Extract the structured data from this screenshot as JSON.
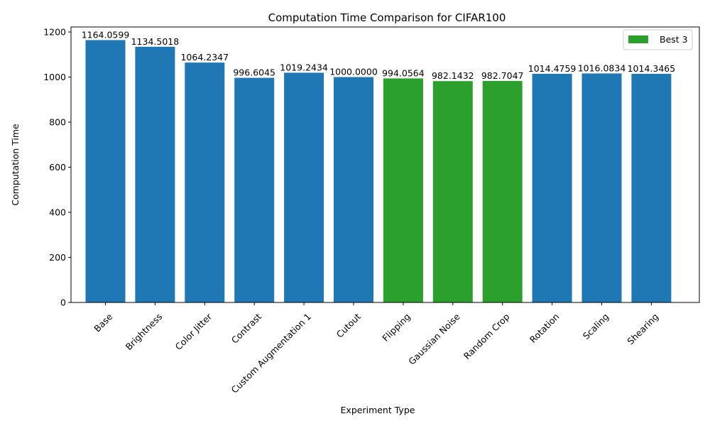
{
  "chart_data": {
    "type": "bar",
    "title": "Computation Time Comparison for CIFAR100",
    "xlabel": "Experiment Type",
    "ylabel": "Computation Time",
    "ylim": [
      0,
      1222.26
    ],
    "yticks": [
      0,
      200,
      400,
      600,
      800,
      1000,
      1200
    ],
    "grid": false,
    "legend_position": "top-right",
    "categories": [
      "Base",
      "Brightness",
      "Color Jitter",
      "Contrast",
      "Custom Augmentation 1",
      "Cutout",
      "Flipping",
      "Gaussian Noise",
      "Random Crop",
      "Rotation",
      "Scaling",
      "Shearing"
    ],
    "values": [
      1164.0599,
      1134.5018,
      1064.2347,
      996.6045,
      1019.2434,
      1000.0,
      994.0564,
      982.1432,
      982.7047,
      1014.4759,
      1016.0834,
      1014.3465
    ],
    "value_labels": [
      "1164.0599",
      "1134.5018",
      "1064.2347",
      "996.6045",
      "1019.2434",
      "1000.0000",
      "994.0564",
      "982.1432",
      "982.7047",
      "1014.4759",
      "1016.0834",
      "1014.3465"
    ],
    "highlighted": [
      "Flipping",
      "Gaussian Noise",
      "Random Crop"
    ],
    "legend": [
      {
        "label": "Best 3",
        "color": "#2ca02c"
      }
    ],
    "colors": {
      "default": "#1f77b4",
      "highlight": "#2ca02c"
    }
  }
}
